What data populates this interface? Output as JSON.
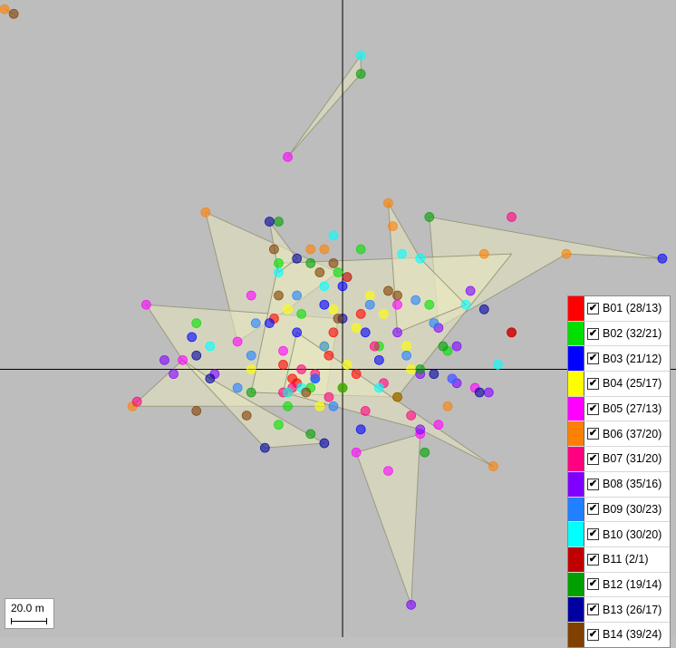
{
  "chart_data": {
    "type": "scatter",
    "title": "",
    "xlabel": "",
    "ylabel": "",
    "axes_origin_crosshair": true,
    "hull_fill": "#e8e8c0",
    "xlim": [
      -75,
      73
    ],
    "ylim": [
      -58,
      80
    ],
    "series": [
      {
        "name": "B01",
        "label": "B01 (28/13)",
        "color": "#ff0000",
        "checked": true,
        "points": [
          [
            -13,
            1
          ],
          [
            -3,
            3
          ],
          [
            3,
            -1
          ],
          [
            -10,
            -3
          ],
          [
            -2,
            8
          ],
          [
            4,
            12
          ],
          [
            -15,
            11
          ],
          [
            0,
            -4
          ],
          [
            37,
            8
          ],
          [
            -11,
            -2
          ]
        ]
      },
      {
        "name": "B02",
        "label": "B02 (32/21)",
        "color": "#00e000",
        "checked": true,
        "points": [
          [
            -14,
            23
          ],
          [
            4,
            26
          ],
          [
            -9,
            12
          ],
          [
            8,
            5
          ],
          [
            19,
            14
          ],
          [
            -32,
            10
          ],
          [
            23,
            4
          ],
          [
            -12,
            -8
          ],
          [
            -7,
            -4
          ],
          [
            -14,
            -12
          ],
          [
            -1,
            21
          ],
          [
            0,
            -4
          ]
        ]
      },
      {
        "name": "B03",
        "label": "B03 (21/12)",
        "color": "#0000ff",
        "checked": true,
        "points": [
          [
            -10,
            8
          ],
          [
            0,
            18
          ],
          [
            4,
            -13
          ],
          [
            -33,
            7
          ],
          [
            -16,
            10
          ],
          [
            -6,
            -2
          ],
          [
            5,
            8
          ],
          [
            8,
            2
          ],
          [
            -4,
            14
          ],
          [
            70,
            24
          ]
        ]
      },
      {
        "name": "B04",
        "label": "B04 (25/17)",
        "color": "#ffff00",
        "checked": true,
        "points": [
          [
            -2,
            13
          ],
          [
            6,
            16
          ],
          [
            -4,
            5
          ],
          [
            3,
            9
          ],
          [
            12,
            -6
          ],
          [
            -12,
            13
          ],
          [
            9,
            12
          ],
          [
            -20,
            0
          ],
          [
            14,
            5
          ],
          [
            -5,
            -8
          ],
          [
            1,
            1
          ],
          [
            15,
            0
          ]
        ]
      },
      {
        "name": "B05",
        "label": "B05 (27/13)",
        "color": "#ff00ff",
        "checked": true,
        "points": [
          [
            -12,
            46
          ],
          [
            -43,
            14
          ],
          [
            -23,
            6
          ],
          [
            -35,
            2
          ],
          [
            3,
            -18
          ],
          [
            10,
            -22
          ],
          [
            21,
            -12
          ],
          [
            -13,
            4
          ],
          [
            -20,
            16
          ],
          [
            12,
            14
          ],
          [
            17,
            -14
          ],
          [
            24,
            -2
          ],
          [
            29,
            -4
          ]
        ]
      },
      {
        "name": "B06",
        "label": "B06 (37/20)",
        "color": "#ff8000",
        "checked": true,
        "points": [
          [
            -74,
            78
          ],
          [
            -30,
            34
          ],
          [
            10,
            36
          ],
          [
            -46,
            -8
          ],
          [
            31,
            25
          ],
          [
            49,
            25
          ],
          [
            -4,
            26
          ],
          [
            -12,
            -5
          ],
          [
            11,
            31
          ],
          [
            33,
            -21
          ],
          [
            23,
            -8
          ],
          [
            -7,
            26
          ]
        ]
      },
      {
        "name": "B07",
        "label": "B07 (31/20)",
        "color": "#ff0080",
        "checked": true,
        "points": [
          [
            -45,
            -7
          ],
          [
            -11,
            -4
          ],
          [
            -6,
            -1
          ],
          [
            9,
            -3
          ],
          [
            5,
            -9
          ],
          [
            37,
            33
          ],
          [
            15,
            -10
          ],
          [
            -3,
            -6
          ],
          [
            7,
            5
          ],
          [
            -9,
            0
          ],
          [
            -13,
            -5
          ]
        ]
      },
      {
        "name": "B08",
        "label": "B08 (35/16)",
        "color": "#8000ff",
        "checked": true,
        "points": [
          [
            15,
            -51
          ],
          [
            -39,
            2
          ],
          [
            -37,
            -1
          ],
          [
            25,
            -3
          ],
          [
            12,
            8
          ],
          [
            17,
            -1
          ],
          [
            -28,
            -1
          ],
          [
            17,
            -13
          ],
          [
            25,
            5
          ],
          [
            28,
            17
          ],
          [
            21,
            9
          ],
          [
            32,
            -5
          ]
        ]
      },
      {
        "name": "B09",
        "label": "B09 (30/23)",
        "color": "#2080ff",
        "checked": true,
        "points": [
          [
            -20,
            3
          ],
          [
            -10,
            16
          ],
          [
            -2,
            -8
          ],
          [
            14,
            3
          ],
          [
            6,
            14
          ],
          [
            16,
            15
          ],
          [
            -4,
            5
          ],
          [
            24,
            -2
          ],
          [
            -23,
            -4
          ],
          [
            -19,
            10
          ],
          [
            20,
            10
          ],
          [
            -6,
            -2
          ]
        ]
      },
      {
        "name": "B10",
        "label": "B10 (30/20)",
        "color": "#00ffff",
        "checked": true,
        "points": [
          [
            4,
            68
          ],
          [
            -2,
            29
          ],
          [
            -14,
            21
          ],
          [
            -29,
            5
          ],
          [
            -12,
            -5
          ],
          [
            8,
            -4
          ],
          [
            13,
            25
          ],
          [
            27,
            14
          ],
          [
            34,
            1
          ],
          [
            -4,
            18
          ],
          [
            17,
            24
          ],
          [
            -9,
            -4
          ]
        ]
      },
      {
        "name": "B11",
        "label": "B11 (2/1)",
        "color": "#c00000",
        "checked": true,
        "points": [
          [
            37,
            8
          ],
          [
            1,
            20
          ]
        ]
      },
      {
        "name": "B12",
        "label": "B12 (19/14)",
        "color": "#00a000",
        "checked": true,
        "points": [
          [
            4,
            64
          ],
          [
            -14,
            32
          ],
          [
            19,
            33
          ],
          [
            -7,
            23
          ],
          [
            22,
            5
          ],
          [
            17,
            0
          ],
          [
            -7,
            -14
          ],
          [
            18,
            -18
          ],
          [
            -20,
            -5
          ]
        ]
      },
      {
        "name": "B13",
        "label": "B13 (26/17)",
        "color": "#0000a0",
        "checked": true,
        "points": [
          [
            -16,
            32
          ],
          [
            -17,
            -17
          ],
          [
            -4,
            -16
          ],
          [
            -29,
            -2
          ],
          [
            20,
            -1
          ],
          [
            30,
            -5
          ],
          [
            -32,
            3
          ],
          [
            0,
            11
          ],
          [
            -10,
            24
          ],
          [
            31,
            13
          ]
        ]
      },
      {
        "name": "B14",
        "label": "B14 (39/24)",
        "color": "#804000",
        "checked": true,
        "points": [
          [
            -72,
            77
          ],
          [
            -15,
            26
          ],
          [
            -5,
            21
          ],
          [
            10,
            17
          ],
          [
            -1,
            11
          ],
          [
            -32,
            -9
          ],
          [
            12,
            -6
          ],
          [
            -21,
            -10
          ],
          [
            12,
            16
          ],
          [
            -8,
            -5
          ],
          [
            -14,
            16
          ],
          [
            -2,
            23
          ]
        ]
      }
    ],
    "hulls": [
      [
        [
          -12,
          46
        ],
        [
          4,
          68
        ],
        [
          4,
          64
        ]
      ],
      [
        [
          -74,
          78
        ],
        [
          -72,
          77
        ]
      ],
      [
        [
          -30,
          34
        ],
        [
          -1,
          21
        ],
        [
          -12,
          13
        ],
        [
          -23,
          6
        ]
      ],
      [
        [
          -43,
          14
        ],
        [
          -1,
          11
        ],
        [
          -4,
          -8
        ],
        [
          -46,
          -8
        ],
        [
          -35,
          2
        ]
      ],
      [
        [
          19,
          33
        ],
        [
          70,
          24
        ],
        [
          49,
          25
        ],
        [
          21,
          9
        ]
      ],
      [
        [
          3,
          -18
        ],
        [
          15,
          -51
        ],
        [
          17,
          -14
        ]
      ],
      [
        [
          -14,
          23
        ],
        [
          37,
          25
        ],
        [
          12,
          -6
        ],
        [
          -20,
          -5
        ]
      ],
      [
        [
          10,
          36
        ],
        [
          17,
          24
        ],
        [
          27,
          14
        ],
        [
          12,
          8
        ]
      ],
      [
        [
          -10,
          8
        ],
        [
          33,
          -21
        ],
        [
          17,
          -13
        ],
        [
          -13,
          -5
        ]
      ],
      [
        [
          -35,
          2
        ],
        [
          -17,
          -17
        ],
        [
          -4,
          -16
        ],
        [
          -29,
          -2
        ]
      ],
      [
        [
          -16,
          32
        ],
        [
          -10,
          24
        ],
        [
          -14,
          21
        ]
      ]
    ]
  },
  "legend": {
    "check_mark": "✔"
  },
  "scale_bar": {
    "label": "20.0 m"
  }
}
